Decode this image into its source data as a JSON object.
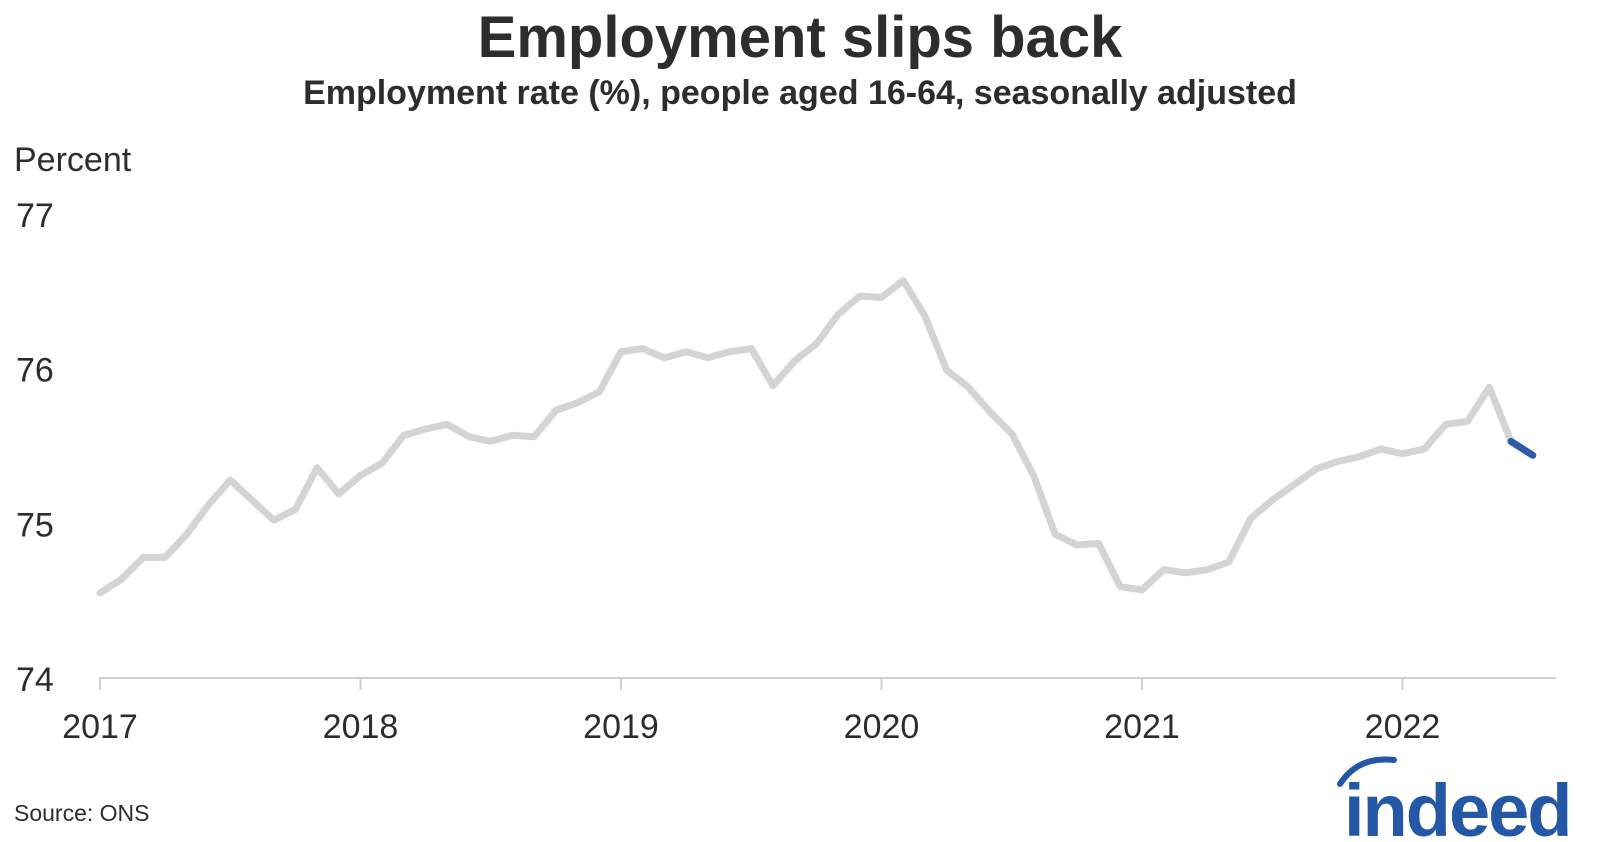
{
  "title": "Employment slips back",
  "subtitle": "Employment rate (%), people aged 16-64, seasonally adjusted",
  "source": "Source: ONS",
  "logo_text": "indeed",
  "colors": {
    "history": "#d4d4d4",
    "latest": "#2f5aa8",
    "text": "#2d2d2d",
    "brand": "#2557a7"
  },
  "chart_data": {
    "type": "line",
    "title": "Employment slips back",
    "subtitle": "Employment rate (%), people aged 16-64, seasonally adjusted",
    "ylabel": "Percent",
    "xlabel": "",
    "ylim": [
      74,
      77
    ],
    "yticks": [
      74,
      75,
      76,
      77
    ],
    "xlim": [
      "2017-01",
      "2022-07"
    ],
    "xticks": [
      "2017",
      "2018",
      "2019",
      "2020",
      "2021",
      "2022"
    ],
    "grid": false,
    "legend": "none",
    "series": [
      {
        "x": [
          "2017-01",
          "2017-02",
          "2017-03",
          "2017-04",
          "2017-05",
          "2017-06",
          "2017-07",
          "2017-08",
          "2017-09",
          "2017-10",
          "2017-11",
          "2017-12",
          "2018-01",
          "2018-02",
          "2018-03",
          "2018-04",
          "2018-05",
          "2018-06",
          "2018-07",
          "2018-08",
          "2018-09",
          "2018-10",
          "2018-11",
          "2018-12",
          "2019-01",
          "2019-02",
          "2019-03",
          "2019-04",
          "2019-05",
          "2019-06",
          "2019-07",
          "2019-08",
          "2019-09",
          "2019-10",
          "2019-11",
          "2019-12",
          "2020-01",
          "2020-02",
          "2020-03",
          "2020-04",
          "2020-05",
          "2020-06",
          "2020-07",
          "2020-08",
          "2020-09",
          "2020-10",
          "2020-11",
          "2020-12",
          "2021-01",
          "2021-02",
          "2021-03",
          "2021-04",
          "2021-05",
          "2021-06",
          "2021-07",
          "2021-08",
          "2021-09",
          "2021-10",
          "2021-11",
          "2021-12",
          "2022-01",
          "2022-02",
          "2022-03",
          "2022-04",
          "2022-05",
          "2022-06"
        ],
        "values": [
          74.55,
          74.64,
          74.78,
          74.78,
          74.93,
          75.12,
          75.28,
          75.15,
          75.02,
          75.09,
          75.36,
          75.19,
          75.31,
          75.39,
          75.57,
          75.61,
          75.64,
          75.56,
          75.53,
          75.57,
          75.56,
          75.73,
          75.78,
          75.85,
          76.11,
          76.13,
          76.07,
          76.11,
          76.07,
          76.11,
          76.13,
          75.89,
          76.05,
          76.16,
          76.35,
          76.47,
          76.46,
          76.57,
          76.34,
          75.99,
          75.88,
          75.72,
          75.58,
          75.31,
          74.93,
          74.86,
          74.87,
          74.59,
          74.57,
          74.7,
          74.68,
          74.7,
          74.75,
          75.03,
          75.15,
          75.25,
          75.35,
          75.4,
          75.43,
          75.48,
          75.45,
          75.48,
          75.64,
          75.66,
          75.88,
          75.53
        ]
      },
      {
        "x": [
          "2022-06",
          "2022-07"
        ],
        "values": [
          75.53,
          75.44
        ]
      }
    ]
  }
}
